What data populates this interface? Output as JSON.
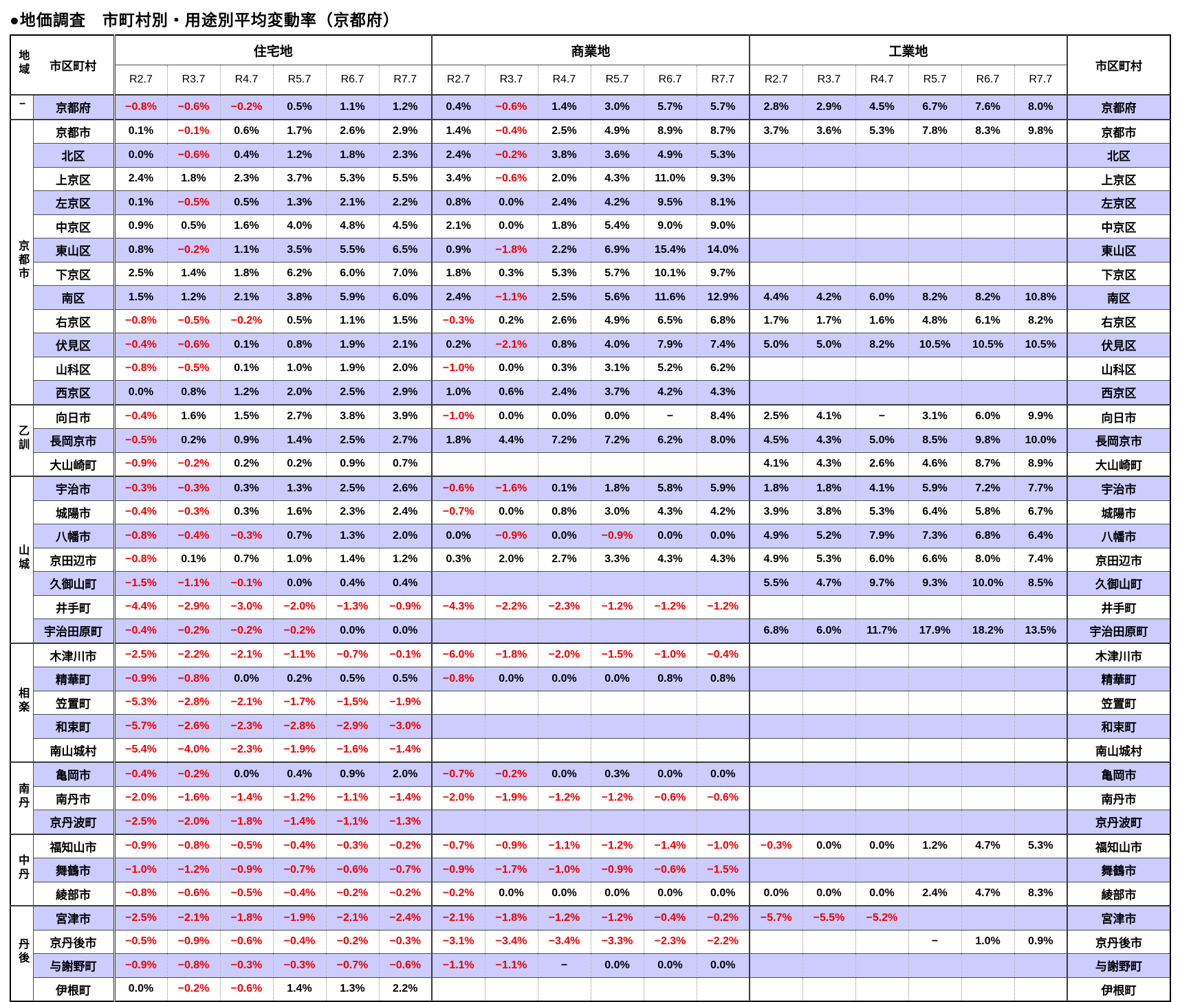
{
  "title": "●地価調査　市町村別・用途別平均変動率（京都府）",
  "colors": {
    "row_shade": "#ccccff",
    "negative_text": "#ee0000",
    "text": "#000000"
  },
  "header": {
    "region_label": "地域",
    "municipality_label": "市区町村",
    "municipality_label_right": "市区町村",
    "periods": [
      "R2.7",
      "R3.7",
      "R4.7",
      "R5.7",
      "R6.7",
      "R7.7"
    ],
    "sections": [
      {
        "key": "res",
        "label": "住宅地"
      },
      {
        "key": "com",
        "label": "商業地"
      },
      {
        "key": "ind",
        "label": "工業地"
      }
    ]
  },
  "rows": [
    {
      "region": "−",
      "region_span": 1,
      "name": "京都府",
      "res": [
        "−0.8%",
        "−0.6%",
        "−0.2%",
        "0.5%",
        "1.1%",
        "1.2%"
      ],
      "com": [
        "0.4%",
        "−0.6%",
        "1.4%",
        "3.0%",
        "5.7%",
        "5.7%"
      ],
      "ind": [
        "2.8%",
        "2.9%",
        "4.5%",
        "6.7%",
        "7.6%",
        "8.0%"
      ]
    },
    {
      "region": "京都市",
      "region_span": 12,
      "name": "京都市",
      "res": [
        "0.1%",
        "−0.1%",
        "0.6%",
        "1.7%",
        "2.6%",
        "2.9%"
      ],
      "com": [
        "1.4%",
        "−0.4%",
        "2.5%",
        "4.9%",
        "8.9%",
        "8.7%"
      ],
      "ind": [
        "3.7%",
        "3.6%",
        "5.3%",
        "7.8%",
        "8.3%",
        "9.8%"
      ]
    },
    {
      "name": "北区",
      "res": [
        "0.0%",
        "−0.6%",
        "0.4%",
        "1.2%",
        "1.8%",
        "2.3%"
      ],
      "com": [
        "2.4%",
        "−0.2%",
        "3.8%",
        "3.6%",
        "4.9%",
        "5.3%"
      ],
      "ind": [
        "",
        "",
        "",
        "",
        "",
        ""
      ]
    },
    {
      "name": "上京区",
      "res": [
        "2.4%",
        "1.8%",
        "2.3%",
        "3.7%",
        "5.3%",
        "5.5%"
      ],
      "com": [
        "3.4%",
        "−0.6%",
        "2.0%",
        "4.3%",
        "11.0%",
        "9.3%"
      ],
      "ind": [
        "",
        "",
        "",
        "",
        "",
        ""
      ]
    },
    {
      "name": "左京区",
      "res": [
        "0.1%",
        "−0.5%",
        "0.5%",
        "1.3%",
        "2.1%",
        "2.2%"
      ],
      "com": [
        "0.8%",
        "0.0%",
        "2.4%",
        "4.2%",
        "9.5%",
        "8.1%"
      ],
      "ind": [
        "",
        "",
        "",
        "",
        "",
        ""
      ]
    },
    {
      "name": "中京区",
      "res": [
        "0.9%",
        "0.5%",
        "1.6%",
        "4.0%",
        "4.8%",
        "4.5%"
      ],
      "com": [
        "2.1%",
        "0.0%",
        "1.8%",
        "5.4%",
        "9.0%",
        "9.0%"
      ],
      "ind": [
        "",
        "",
        "",
        "",
        "",
        ""
      ]
    },
    {
      "name": "東山区",
      "res": [
        "0.8%",
        "−0.2%",
        "1.1%",
        "3.5%",
        "5.5%",
        "6.5%"
      ],
      "com": [
        "0.9%",
        "−1.8%",
        "2.2%",
        "6.9%",
        "15.4%",
        "14.0%"
      ],
      "ind": [
        "",
        "",
        "",
        "",
        "",
        ""
      ]
    },
    {
      "name": "下京区",
      "res": [
        "2.5%",
        "1.4%",
        "1.8%",
        "6.2%",
        "6.0%",
        "7.0%"
      ],
      "com": [
        "1.8%",
        "0.3%",
        "5.3%",
        "5.7%",
        "10.1%",
        "9.7%"
      ],
      "ind": [
        "",
        "",
        "",
        "",
        "",
        ""
      ]
    },
    {
      "name": "南区",
      "res": [
        "1.5%",
        "1.2%",
        "2.1%",
        "3.8%",
        "5.9%",
        "6.0%"
      ],
      "com": [
        "2.4%",
        "−1.1%",
        "2.5%",
        "5.6%",
        "11.6%",
        "12.9%"
      ],
      "ind": [
        "4.4%",
        "4.2%",
        "6.0%",
        "8.2%",
        "8.2%",
        "10.8%"
      ]
    },
    {
      "name": "右京区",
      "res": [
        "−0.8%",
        "−0.5%",
        "−0.2%",
        "0.5%",
        "1.1%",
        "1.5%"
      ],
      "com": [
        "−0.3%",
        "0.2%",
        "2.6%",
        "4.9%",
        "6.5%",
        "6.8%"
      ],
      "ind": [
        "1.7%",
        "1.7%",
        "1.6%",
        "4.8%",
        "6.1%",
        "8.2%"
      ]
    },
    {
      "name": "伏見区",
      "res": [
        "−0.4%",
        "−0.6%",
        "0.1%",
        "0.8%",
        "1.9%",
        "2.1%"
      ],
      "com": [
        "0.2%",
        "−2.1%",
        "0.8%",
        "4.0%",
        "7.9%",
        "7.4%"
      ],
      "ind": [
        "5.0%",
        "5.0%",
        "8.2%",
        "10.5%",
        "10.5%",
        "10.5%"
      ]
    },
    {
      "name": "山科区",
      "res": [
        "−0.8%",
        "−0.5%",
        "0.1%",
        "1.0%",
        "1.9%",
        "2.0%"
      ],
      "com": [
        "−1.0%",
        "0.0%",
        "0.3%",
        "3.1%",
        "5.2%",
        "6.2%"
      ],
      "ind": [
        "",
        "",
        "",
        "",
        "",
        ""
      ]
    },
    {
      "name": "西京区",
      "res": [
        "0.0%",
        "0.8%",
        "1.2%",
        "2.0%",
        "2.5%",
        "2.9%"
      ],
      "com": [
        "1.0%",
        "0.6%",
        "2.4%",
        "3.7%",
        "4.2%",
        "4.3%"
      ],
      "ind": [
        "",
        "",
        "",
        "",
        "",
        ""
      ]
    },
    {
      "region": "乙訓",
      "region_span": 3,
      "name": "向日市",
      "res": [
        "−0.4%",
        "1.6%",
        "1.5%",
        "2.7%",
        "3.8%",
        "3.9%"
      ],
      "com": [
        "−1.0%",
        "0.0%",
        "0.0%",
        "0.0%",
        "−",
        "8.4%"
      ],
      "ind": [
        "2.5%",
        "4.1%",
        "−",
        "3.1%",
        "6.0%",
        "9.9%"
      ]
    },
    {
      "name": "長岡京市",
      "res": [
        "−0.5%",
        "0.2%",
        "0.9%",
        "1.4%",
        "2.5%",
        "2.7%"
      ],
      "com": [
        "1.8%",
        "4.4%",
        "7.2%",
        "7.2%",
        "6.2%",
        "8.0%"
      ],
      "ind": [
        "4.5%",
        "4.3%",
        "5.0%",
        "8.5%",
        "9.8%",
        "10.0%"
      ]
    },
    {
      "name": "大山崎町",
      "res": [
        "−0.9%",
        "−0.2%",
        "0.2%",
        "0.2%",
        "0.9%",
        "0.7%"
      ],
      "com": [
        "",
        "",
        "",
        "",
        "",
        ""
      ],
      "ind": [
        "4.1%",
        "4.3%",
        "2.6%",
        "4.6%",
        "8.7%",
        "8.9%"
      ]
    },
    {
      "region": "山城",
      "region_span": 7,
      "name": "宇治市",
      "res": [
        "−0.3%",
        "−0.3%",
        "0.3%",
        "1.3%",
        "2.5%",
        "2.6%"
      ],
      "com": [
        "−0.6%",
        "−1.6%",
        "0.1%",
        "1.8%",
        "5.8%",
        "5.9%"
      ],
      "ind": [
        "1.8%",
        "1.8%",
        "4.1%",
        "5.9%",
        "7.2%",
        "7.7%"
      ]
    },
    {
      "name": "城陽市",
      "res": [
        "−0.4%",
        "−0.3%",
        "0.3%",
        "1.6%",
        "2.3%",
        "2.4%"
      ],
      "com": [
        "−0.7%",
        "0.0%",
        "0.8%",
        "3.0%",
        "4.3%",
        "4.2%"
      ],
      "ind": [
        "3.9%",
        "3.8%",
        "5.3%",
        "6.4%",
        "5.8%",
        "6.7%"
      ]
    },
    {
      "name": "八幡市",
      "res": [
        "−0.8%",
        "−0.4%",
        "−0.3%",
        "0.7%",
        "1.3%",
        "2.0%"
      ],
      "com": [
        "0.0%",
        "−0.9%",
        "0.0%",
        "−0.9%",
        "0.0%",
        "0.0%"
      ],
      "ind": [
        "4.9%",
        "5.2%",
        "7.9%",
        "7.3%",
        "6.8%",
        "6.4%"
      ]
    },
    {
      "name": "京田辺市",
      "res": [
        "−0.8%",
        "0.1%",
        "0.7%",
        "1.0%",
        "1.4%",
        "1.2%"
      ],
      "com": [
        "0.3%",
        "2.0%",
        "2.7%",
        "3.3%",
        "4.3%",
        "4.3%"
      ],
      "ind": [
        "4.9%",
        "5.3%",
        "6.0%",
        "6.6%",
        "8.0%",
        "7.4%"
      ]
    },
    {
      "name": "久御山町",
      "res": [
        "−1.5%",
        "−1.1%",
        "−0.1%",
        "0.0%",
        "0.4%",
        "0.4%"
      ],
      "com": [
        "",
        "",
        "",
        "",
        "",
        ""
      ],
      "ind": [
        "5.5%",
        "4.7%",
        "9.7%",
        "9.3%",
        "10.0%",
        "8.5%"
      ]
    },
    {
      "name": "井手町",
      "res": [
        "−4.4%",
        "−2.9%",
        "−3.0%",
        "−2.0%",
        "−1.3%",
        "−0.9%"
      ],
      "com": [
        "−4.3%",
        "−2.2%",
        "−2.3%",
        "−1.2%",
        "−1.2%",
        "−1.2%"
      ],
      "ind": [
        "",
        "",
        "",
        "",
        "",
        ""
      ]
    },
    {
      "name": "宇治田原町",
      "res": [
        "−0.4%",
        "−0.2%",
        "−0.2%",
        "−0.2%",
        "0.0%",
        "0.0%"
      ],
      "com": [
        "",
        "",
        "",
        "",
        "",
        ""
      ],
      "ind": [
        "6.8%",
        "6.0%",
        "11.7%",
        "17.9%",
        "18.2%",
        "13.5%"
      ]
    },
    {
      "region": "相楽",
      "region_span": 5,
      "name": "木津川市",
      "res": [
        "−2.5%",
        "−2.2%",
        "−2.1%",
        "−1.1%",
        "−0.7%",
        "−0.1%"
      ],
      "com": [
        "−6.0%",
        "−1.8%",
        "−2.0%",
        "−1.5%",
        "−1.0%",
        "−0.4%"
      ],
      "ind": [
        "",
        "",
        "",
        "",
        "",
        ""
      ]
    },
    {
      "name": "精華町",
      "res": [
        "−0.9%",
        "−0.8%",
        "0.0%",
        "0.2%",
        "0.5%",
        "0.5%"
      ],
      "com": [
        "−0.8%",
        "0.0%",
        "0.0%",
        "0.0%",
        "0.8%",
        "0.8%"
      ],
      "ind": [
        "",
        "",
        "",
        "",
        "",
        ""
      ]
    },
    {
      "name": "笠置町",
      "res": [
        "−5.3%",
        "−2.8%",
        "−2.1%",
        "−1.7%",
        "−1.5%",
        "−1.9%"
      ],
      "com": [
        "",
        "",
        "",
        "",
        "",
        ""
      ],
      "ind": [
        "",
        "",
        "",
        "",
        "",
        ""
      ]
    },
    {
      "name": "和束町",
      "res": [
        "−5.7%",
        "−2.6%",
        "−2.3%",
        "−2.8%",
        "−2.9%",
        "−3.0%"
      ],
      "com": [
        "",
        "",
        "",
        "",
        "",
        ""
      ],
      "ind": [
        "",
        "",
        "",
        "",
        "",
        ""
      ]
    },
    {
      "name": "南山城村",
      "res": [
        "−5.4%",
        "−4.0%",
        "−2.3%",
        "−1.9%",
        "−1.6%",
        "−1.4%"
      ],
      "com": [
        "",
        "",
        "",
        "",
        "",
        ""
      ],
      "ind": [
        "",
        "",
        "",
        "",
        "",
        ""
      ]
    },
    {
      "region": "南丹",
      "region_span": 3,
      "name": "亀岡市",
      "res": [
        "−0.4%",
        "−0.2%",
        "0.0%",
        "0.4%",
        "0.9%",
        "2.0%"
      ],
      "com": [
        "−0.7%",
        "−0.2%",
        "0.0%",
        "0.3%",
        "0.0%",
        "0.0%"
      ],
      "ind": [
        "",
        "",
        "",
        "",
        "",
        ""
      ]
    },
    {
      "name": "南丹市",
      "res": [
        "−2.0%",
        "−1.6%",
        "−1.4%",
        "−1.2%",
        "−1.1%",
        "−1.4%"
      ],
      "com": [
        "−2.0%",
        "−1.9%",
        "−1.2%",
        "−1.2%",
        "−0.6%",
        "−0.6%"
      ],
      "ind": [
        "",
        "",
        "",
        "",
        "",
        ""
      ]
    },
    {
      "name": "京丹波町",
      "res": [
        "−2.5%",
        "−2.0%",
        "−1.8%",
        "−1.4%",
        "−1.1%",
        "−1.3%"
      ],
      "com": [
        "",
        "",
        "",
        "",
        "",
        ""
      ],
      "ind": [
        "",
        "",
        "",
        "",
        "",
        ""
      ]
    },
    {
      "region": "中丹",
      "region_span": 3,
      "name": "福知山市",
      "res": [
        "−0.9%",
        "−0.8%",
        "−0.5%",
        "−0.4%",
        "−0.3%",
        "−0.2%"
      ],
      "com": [
        "−0.7%",
        "−0.9%",
        "−1.1%",
        "−1.2%",
        "−1.4%",
        "−1.0%"
      ],
      "ind": [
        "−0.3%",
        "0.0%",
        "0.0%",
        "1.2%",
        "4.7%",
        "5.3%"
      ]
    },
    {
      "name": "舞鶴市",
      "res": [
        "−1.0%",
        "−1.2%",
        "−0.9%",
        "−0.7%",
        "−0.6%",
        "−0.7%"
      ],
      "com": [
        "−0.9%",
        "−1.7%",
        "−1.0%",
        "−0.9%",
        "−0.6%",
        "−1.5%"
      ],
      "ind": [
        "",
        "",
        "",
        "",
        "",
        ""
      ]
    },
    {
      "name": "綾部市",
      "res": [
        "−0.8%",
        "−0.6%",
        "−0.5%",
        "−0.4%",
        "−0.2%",
        "−0.2%"
      ],
      "com": [
        "−0.2%",
        "0.0%",
        "0.0%",
        "0.0%",
        "0.0%",
        "0.0%"
      ],
      "ind": [
        "0.0%",
        "0.0%",
        "0.0%",
        "2.4%",
        "4.7%",
        "8.3%"
      ]
    },
    {
      "region": "丹後",
      "region_span": 4,
      "name": "宮津市",
      "res": [
        "−2.5%",
        "−2.1%",
        "−1.8%",
        "−1.9%",
        "−2.1%",
        "−2.4%"
      ],
      "com": [
        "−2.1%",
        "−1.8%",
        "−1.2%",
        "−1.2%",
        "−0.4%",
        "−0.2%"
      ],
      "ind": [
        "−5.7%",
        "−5.5%",
        "−5.2%",
        "",
        "",
        ""
      ]
    },
    {
      "name": "京丹後市",
      "res": [
        "−0.5%",
        "−0.9%",
        "−0.6%",
        "−0.4%",
        "−0.2%",
        "−0.3%"
      ],
      "com": [
        "−3.1%",
        "−3.4%",
        "−3.4%",
        "−3.3%",
        "−2.3%",
        "−2.2%"
      ],
      "ind": [
        "",
        "",
        "",
        "−",
        "1.0%",
        "0.9%"
      ]
    },
    {
      "name": "与謝野町",
      "res": [
        "−0.9%",
        "−0.8%",
        "−0.3%",
        "−0.3%",
        "−0.7%",
        "−0.6%"
      ],
      "com": [
        "−1.1%",
        "−1.1%",
        "−",
        "0.0%",
        "0.0%",
        "0.0%"
      ],
      "ind": [
        "",
        "",
        "",
        "",
        "",
        ""
      ]
    },
    {
      "name": "伊根町",
      "res": [
        "0.0%",
        "−0.2%",
        "−0.6%",
        "1.4%",
        "1.3%",
        "2.2%"
      ],
      "com": [
        "",
        "",
        "",
        "",
        "",
        ""
      ],
      "ind": [
        "",
        "",
        "",
        "",
        "",
        ""
      ]
    }
  ]
}
